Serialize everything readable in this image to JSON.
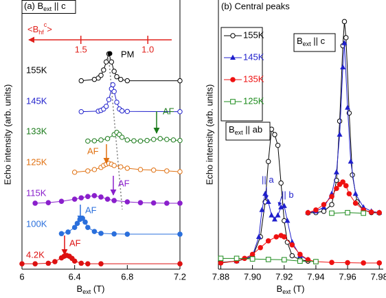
{
  "chart_data": [
    {
      "type": "line",
      "title": {
        "text": "(a) B",
        "sub": "ext",
        "rest": " || c"
      },
      "xlabel": {
        "text": "B",
        "sub": "ext",
        "rest": " (T)"
      },
      "ylabel": "Echo intensity (arb. units)",
      "xlim": [
        6,
        7.2
      ],
      "xticks": [
        6,
        6.4,
        6.8,
        7.2
      ],
      "ylim": [
        0,
        10
      ],
      "hf_axis": {
        "label": {
          "text": "<B",
          "sub": "hf",
          "sup": "c",
          "rest": ">"
        },
        "lim": [
          1.94,
          0.76
        ],
        "ticks": [
          1.5,
          {
            "value": 1,
            "label": "1.0"
          }
        ],
        "color": "#e0201b"
      },
      "annotations": [
        {
          "text": "PM",
          "color": "#000000"
        },
        {
          "text": "AF",
          "color": "#1a7a1a"
        },
        {
          "text": "AF",
          "color": "#e07010"
        },
        {
          "text": "AF",
          "color": "#8a1fcc"
        },
        {
          "text": "AF",
          "color": "#2a6fdc"
        },
        {
          "text": "AF",
          "color": "#dd1111"
        }
      ],
      "series": [
        {
          "name": "155K",
          "color": "#000000",
          "marker": "circle-open",
          "x": [
            6.45,
            6.55,
            6.58,
            6.6,
            6.62,
            6.64,
            6.66,
            6.68,
            6.7,
            6.72,
            6.75,
            6.8,
            7.2
          ],
          "values": [
            7.0,
            7.05,
            7.1,
            7.2,
            7.4,
            7.7,
            8.0,
            7.7,
            7.35,
            7.15,
            7.05,
            7.0,
            7.0
          ]
        },
        {
          "name": "145K",
          "color": "#1f1fcc",
          "marker": "circle-open",
          "x": [
            6.45,
            6.58,
            6.6,
            6.62,
            6.64,
            6.66,
            6.68,
            6.69,
            6.7,
            6.72,
            6.74,
            6.76,
            6.8,
            7.2
          ],
          "values": [
            5.85,
            5.87,
            5.9,
            5.95,
            6.05,
            6.3,
            6.7,
            6.85,
            6.6,
            6.2,
            5.95,
            5.88,
            5.86,
            5.85
          ]
        },
        {
          "name": "133K",
          "color": "#1a7a1a",
          "marker": "circle-open",
          "x": [
            6.5,
            6.55,
            6.6,
            6.65,
            6.7,
            6.72,
            6.74,
            6.76,
            6.8,
            6.85,
            6.9,
            6.95,
            7.0,
            7.05,
            7.1,
            7.15,
            7.2
          ],
          "values": [
            4.76,
            4.77,
            4.8,
            4.85,
            5.0,
            5.08,
            5.0,
            4.9,
            4.8,
            4.77,
            4.76,
            4.78,
            4.82,
            4.85,
            4.82,
            4.8,
            4.78
          ]
        },
        {
          "name": "125K",
          "color": "#e07010",
          "marker": "circle-open",
          "x": [
            6.4,
            6.5,
            6.55,
            6.6,
            6.62,
            6.64,
            6.66,
            6.68,
            6.7,
            6.75,
            6.8,
            6.9,
            7.0,
            7.1,
            7.2
          ],
          "values": [
            3.6,
            3.65,
            3.7,
            3.78,
            3.85,
            3.9,
            3.93,
            3.9,
            3.85,
            3.8,
            3.75,
            3.7,
            3.68,
            3.65,
            3.62
          ]
        },
        {
          "name": "115K",
          "color": "#8a1fcc",
          "marker": "circle-filled",
          "x": [
            6.1,
            6.2,
            6.3,
            6.4,
            6.45,
            6.5,
            6.55,
            6.6,
            6.65,
            6.7,
            6.8,
            6.9,
            7.0,
            7.1,
            7.2
          ],
          "values": [
            2.45,
            2.47,
            2.52,
            2.6,
            2.65,
            2.7,
            2.73,
            2.68,
            2.6,
            2.55,
            2.5,
            2.47,
            2.46,
            2.45,
            2.45
          ]
        },
        {
          "name": "100K",
          "color": "#2a6fdc",
          "marker": "circle-filled",
          "x": [
            6.3,
            6.35,
            6.4,
            6.42,
            6.44,
            6.46,
            6.48,
            6.5,
            6.55,
            6.6,
            6.7,
            6.8,
            7.2
          ],
          "values": [
            1.32,
            1.38,
            1.55,
            1.7,
            1.85,
            1.89,
            1.75,
            1.55,
            1.4,
            1.33,
            1.31,
            1.3,
            1.3
          ]
        },
        {
          "name": "4.2K",
          "color": "#dd1111",
          "marker": "circle-filled",
          "x": [
            6.0,
            6.1,
            6.2,
            6.25,
            6.3,
            6.32,
            6.34,
            6.36,
            6.38,
            6.4,
            6.45,
            6.5,
            6.6,
            7.2
          ],
          "values": [
            0.2,
            0.2,
            0.22,
            0.28,
            0.42,
            0.48,
            0.51,
            0.48,
            0.4,
            0.3,
            0.22,
            0.2,
            0.2,
            0.2
          ]
        }
      ]
    },
    {
      "type": "line",
      "title": "(b) Central peaks",
      "xlabel": {
        "text": "B",
        "sub": "ext",
        "rest": " (T)"
      },
      "ylabel": "Echo intensity (arb. units)",
      "xlim": [
        7.8785,
        7.9825
      ],
      "xticks": [
        7.88,
        {
          "value": 7.9,
          "label": "7.90"
        },
        7.92,
        7.94,
        7.96,
        7.98
      ],
      "ylim": [
        0,
        10
      ],
      "legend": "upper left",
      "annotations": [
        {
          "text": "B",
          "sub": "ext",
          "rest": " || ab",
          "color": "#000000"
        },
        {
          "text": "B",
          "sub": "ext",
          "rest": " || c",
          "color": "#000000"
        },
        {
          "text": "|| a",
          "color": "#1f1fcc"
        },
        {
          "text": "|| b",
          "color": "#1f1fcc"
        }
      ],
      "series": [
        {
          "name": "155K",
          "color": "#000000",
          "marker": "circle-open",
          "x": [
            7.88,
            7.89,
            7.9,
            7.905,
            7.908,
            7.91,
            7.912,
            7.914,
            7.916,
            7.918,
            7.92,
            7.922,
            7.925,
            7.93,
            7.935,
            null,
            7.935,
            7.94,
            7.945,
            7.95,
            7.953,
            7.955,
            7.957,
            7.958,
            7.959,
            7.961,
            7.963,
            7.966,
            7.97,
            7.975,
            7.98
          ],
          "values": [
            0.25,
            0.3,
            0.45,
            1.2,
            2.5,
            4.0,
            5.2,
            5.0,
            4.6,
            3.2,
            1.8,
            1.0,
            0.5,
            0.35,
            0.3,
            null,
            2.09,
            2.1,
            2.15,
            2.4,
            3.3,
            5.5,
            8.3,
            9.2,
            8.6,
            5.8,
            3.5,
            2.5,
            2.2,
            2.1,
            2.09
          ]
        },
        {
          "name": "145K",
          "color": "#1f1fcc",
          "marker": "triangle",
          "x": [
            7.89,
            7.9,
            7.904,
            7.906,
            7.908,
            7.91,
            7.912,
            7.914,
            7.916,
            7.918,
            7.92,
            7.922,
            7.925,
            7.93,
            7.935,
            null,
            7.935,
            7.94,
            7.945,
            7.95,
            7.953,
            7.955,
            7.957,
            7.958,
            7.96,
            7.962,
            7.965,
            7.97,
            7.975,
            7.98
          ],
          "values": [
            0.3,
            0.5,
            1.2,
            2.2,
            2.8,
            2.5,
            2.0,
            1.85,
            2.0,
            2.3,
            2.35,
            1.8,
            1.0,
            0.5,
            0.35,
            null,
            2.1,
            2.15,
            2.3,
            2.8,
            3.6,
            5.0,
            7.5,
            8.4,
            6.0,
            4.0,
            2.8,
            2.3,
            2.15,
            2.1
          ]
        },
        {
          "name": "135K",
          "color": "#ee1111",
          "marker": "circle-filled",
          "x": [
            7.88,
            7.89,
            7.895,
            7.9,
            7.905,
            7.91,
            7.915,
            7.918,
            7.92,
            7.925,
            7.93,
            7.935,
            7.94,
            7.95,
            7.96,
            7.97,
            7.98,
            null,
            7.935,
            7.94,
            7.945,
            7.95,
            7.953,
            7.955,
            7.957,
            7.959,
            7.961,
            7.965,
            7.97,
            7.975,
            7.98
          ],
          "values": [
            0.23,
            0.3,
            0.4,
            0.55,
            0.8,
            1.05,
            1.2,
            1.25,
            1.2,
            0.9,
            0.55,
            0.35,
            0.28,
            0.25,
            0.24,
            0.23,
            0.23,
            null,
            2.1,
            2.2,
            2.4,
            2.7,
            3.0,
            3.15,
            3.24,
            3.1,
            2.8,
            2.45,
            2.2,
            2.12,
            2.1
          ]
        },
        {
          "name": "125K",
          "color": "#1a8a1a",
          "marker": "square-open",
          "x": [
            7.88,
            7.89,
            7.9,
            7.91,
            7.92,
            7.93,
            7.94,
            null,
            7.95,
            7.96,
            7.97
          ],
          "values": [
            0.4,
            0.4,
            0.38,
            0.36,
            0.35,
            0.3,
            0.28,
            null,
            2.08,
            2.1,
            2.08
          ]
        }
      ]
    }
  ]
}
